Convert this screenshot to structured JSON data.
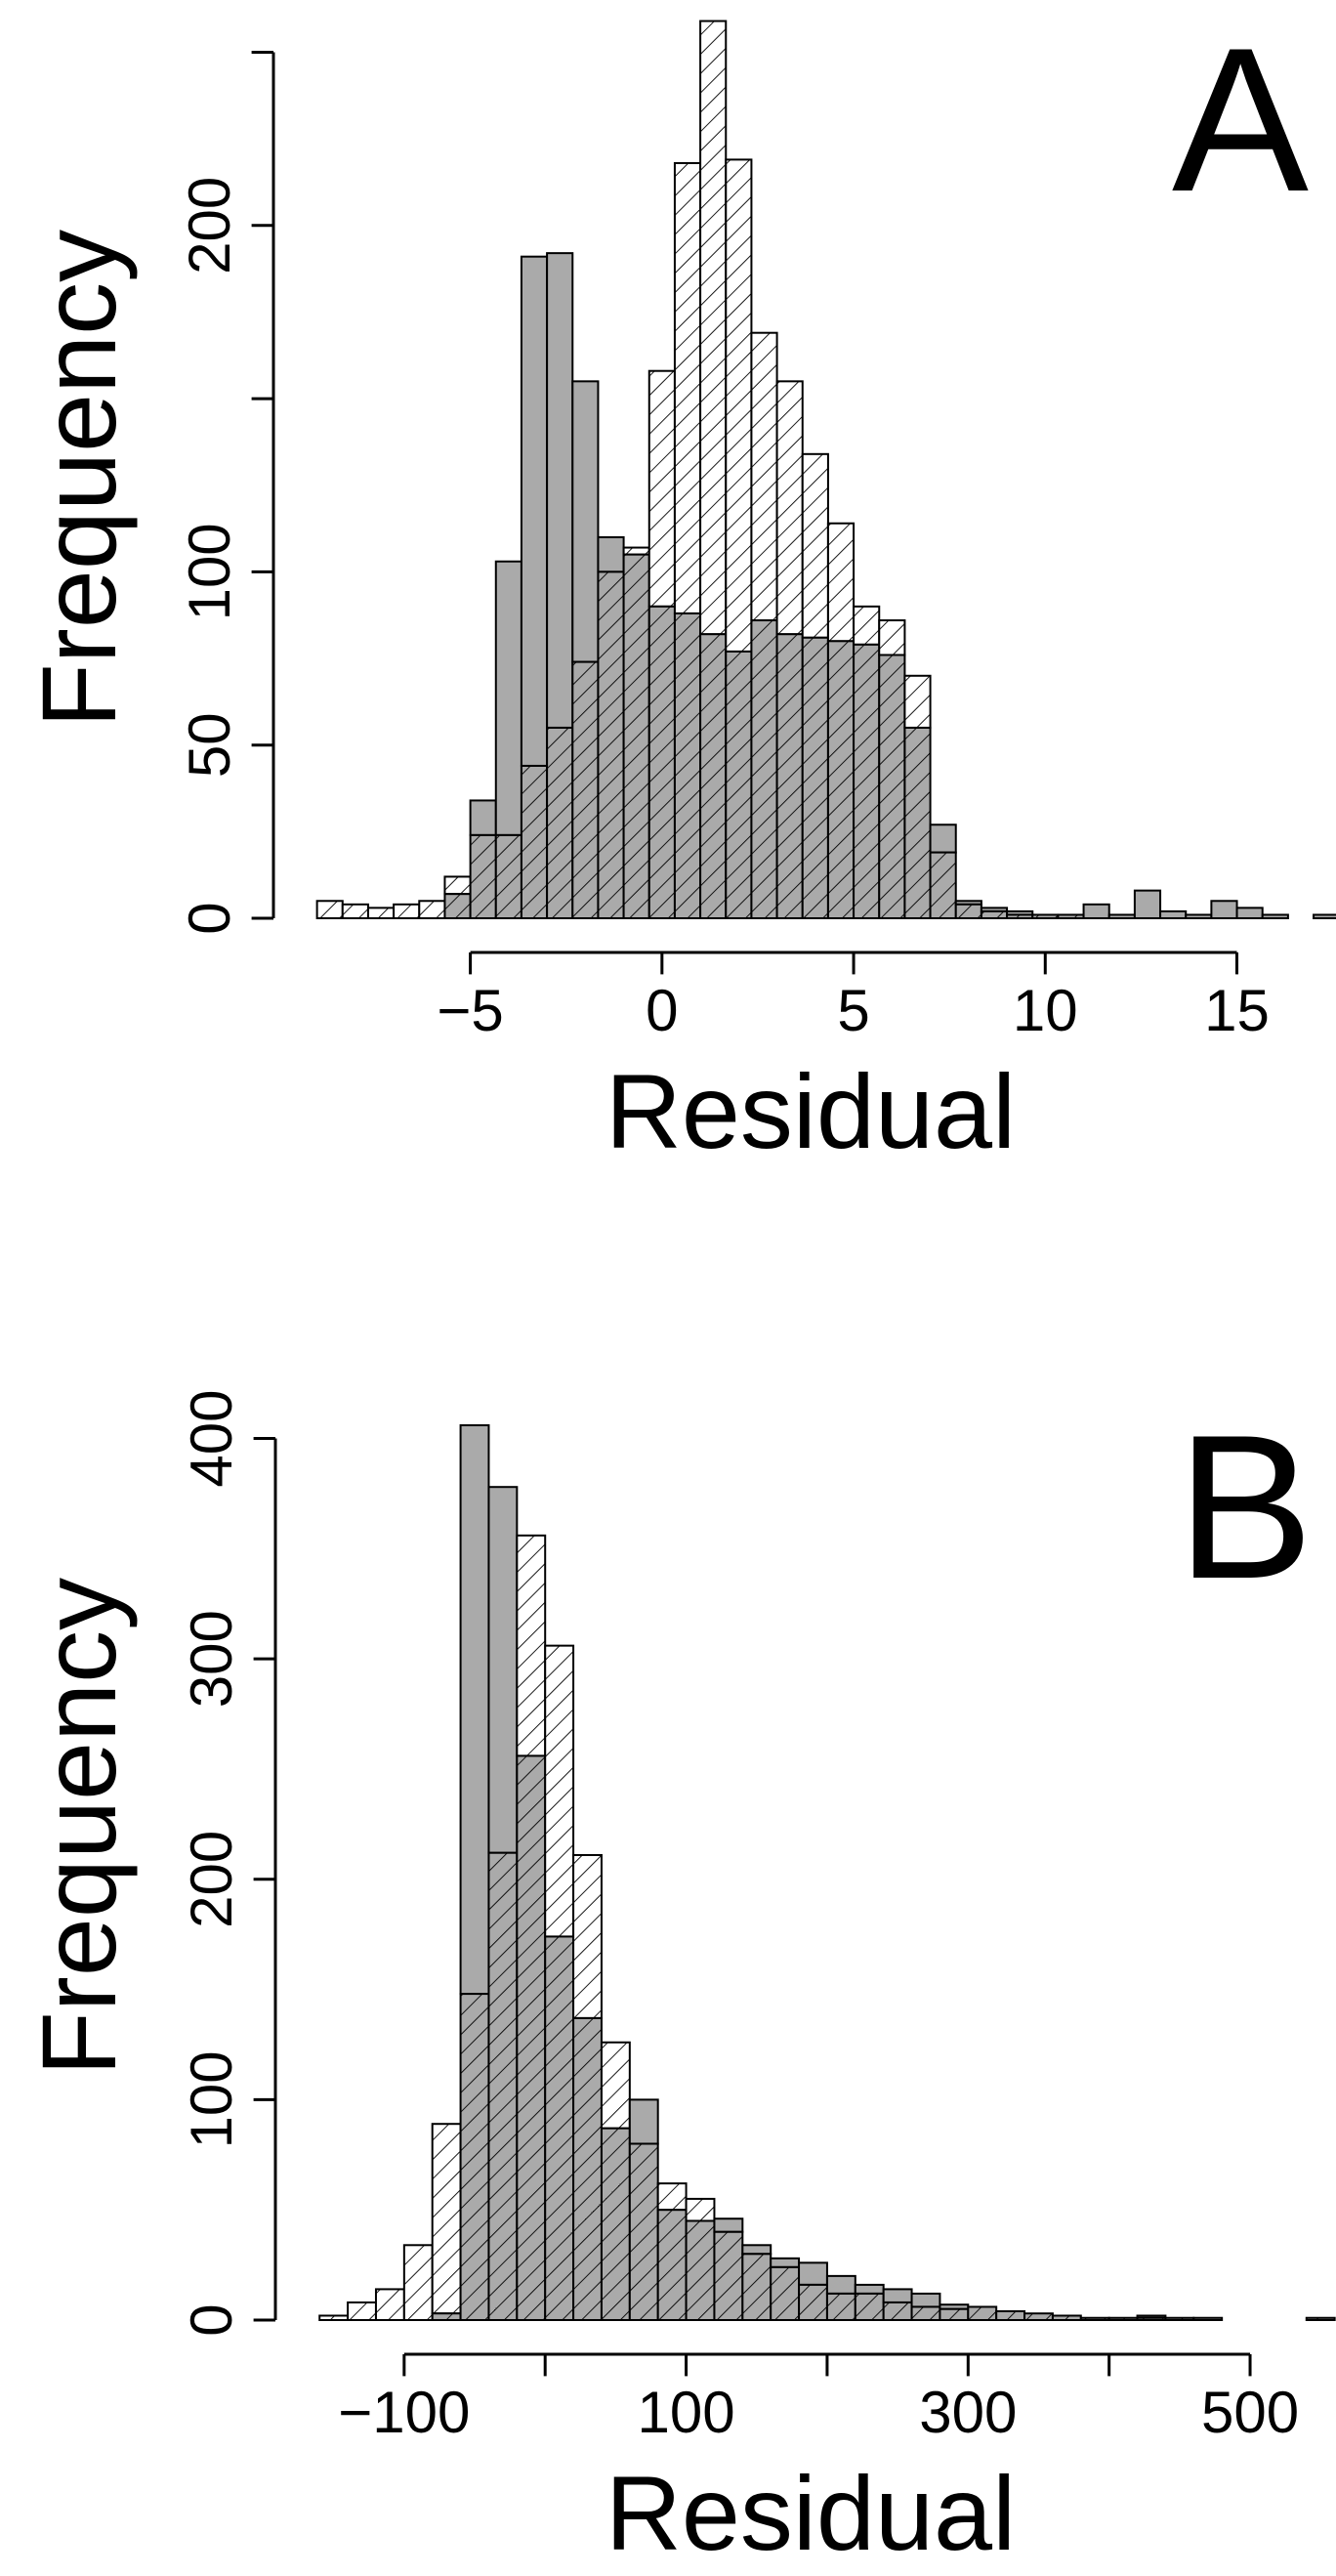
{
  "colors": {
    "solid_fill": "#aaaaaa",
    "hatched_fill": "#ffffff",
    "stroke": "#000000"
  },
  "chart_data": [
    {
      "type": "bar",
      "histogram": true,
      "panel_label": "A",
      "title": "",
      "xlabel": "Residual",
      "ylabel": "Frequency",
      "xlim": [
        -9.5,
        17
      ],
      "ylim": [
        0,
        260
      ],
      "x_ticks": [
        -5,
        0,
        5,
        10,
        15
      ],
      "x_tick_labels": [
        "−5",
        "0",
        "5",
        "10",
        "15"
      ],
      "y_ticks": [
        0,
        50,
        100,
        200
      ],
      "y_tick_labels": [
        "0",
        "50",
        "100",
        "200"
      ],
      "y_tick_marks": [
        0,
        50,
        100,
        150,
        200,
        250
      ],
      "bin_width": 0.6667,
      "bin_start": -9.0,
      "series": [
        {
          "fill": "solid",
          "values": [
            0,
            0,
            0,
            0,
            0,
            7,
            34,
            103,
            191,
            192,
            155,
            110,
            105,
            90,
            88,
            82,
            77,
            86,
            82,
            81,
            80,
            79,
            76,
            55,
            27,
            5,
            3,
            2,
            1,
            1,
            4,
            1,
            8,
            2,
            1,
            5,
            3,
            1,
            0,
            1
          ]
        },
        {
          "fill": "hatched",
          "values": [
            5,
            4,
            3,
            4,
            5,
            12,
            24,
            24,
            44,
            55,
            74,
            100,
            107,
            158,
            218,
            259,
            219,
            169,
            155,
            134,
            114,
            90,
            86,
            70,
            19,
            4,
            2,
            1,
            1,
            1,
            0,
            0,
            0,
            0,
            0,
            0,
            0,
            0,
            0,
            0
          ]
        }
      ]
    },
    {
      "type": "bar",
      "histogram": true,
      "panel_label": "B",
      "title": "",
      "xlabel": "Residual",
      "ylabel": "Frequency",
      "xlim": [
        -165,
        545
      ],
      "ylim": [
        0,
        410
      ],
      "x_ticks": [
        -100,
        0,
        100,
        200,
        300,
        400,
        500
      ],
      "x_tick_labels": [
        "−100",
        "",
        "100",
        "",
        "300",
        "",
        "500"
      ],
      "y_ticks": [
        0,
        100,
        200,
        300,
        400
      ],
      "y_tick_labels": [
        "0",
        "100",
        "200",
        "300",
        "400"
      ],
      "y_tick_marks": [
        0,
        100,
        200,
        300,
        400
      ],
      "bin_width": 20,
      "bin_start": -160,
      "series": [
        {
          "fill": "solid",
          "values": [
            0,
            0,
            0,
            0,
            3,
            406,
            378,
            256,
            174,
            137,
            87,
            100,
            50,
            45,
            46,
            34,
            28,
            26,
            20,
            16,
            14,
            12,
            7,
            6,
            4,
            3,
            2,
            1,
            1,
            2,
            1,
            1,
            0,
            0,
            0,
            1
          ]
        },
        {
          "fill": "hatched",
          "values": [
            2,
            8,
            14,
            34,
            89,
            148,
            212,
            356,
            306,
            211,
            126,
            80,
            62,
            55,
            40,
            30,
            24,
            16,
            12,
            12,
            8,
            6,
            5,
            6,
            4,
            3,
            2,
            1,
            1,
            1,
            1,
            0,
            0,
            0,
            0,
            1
          ]
        }
      ]
    }
  ]
}
